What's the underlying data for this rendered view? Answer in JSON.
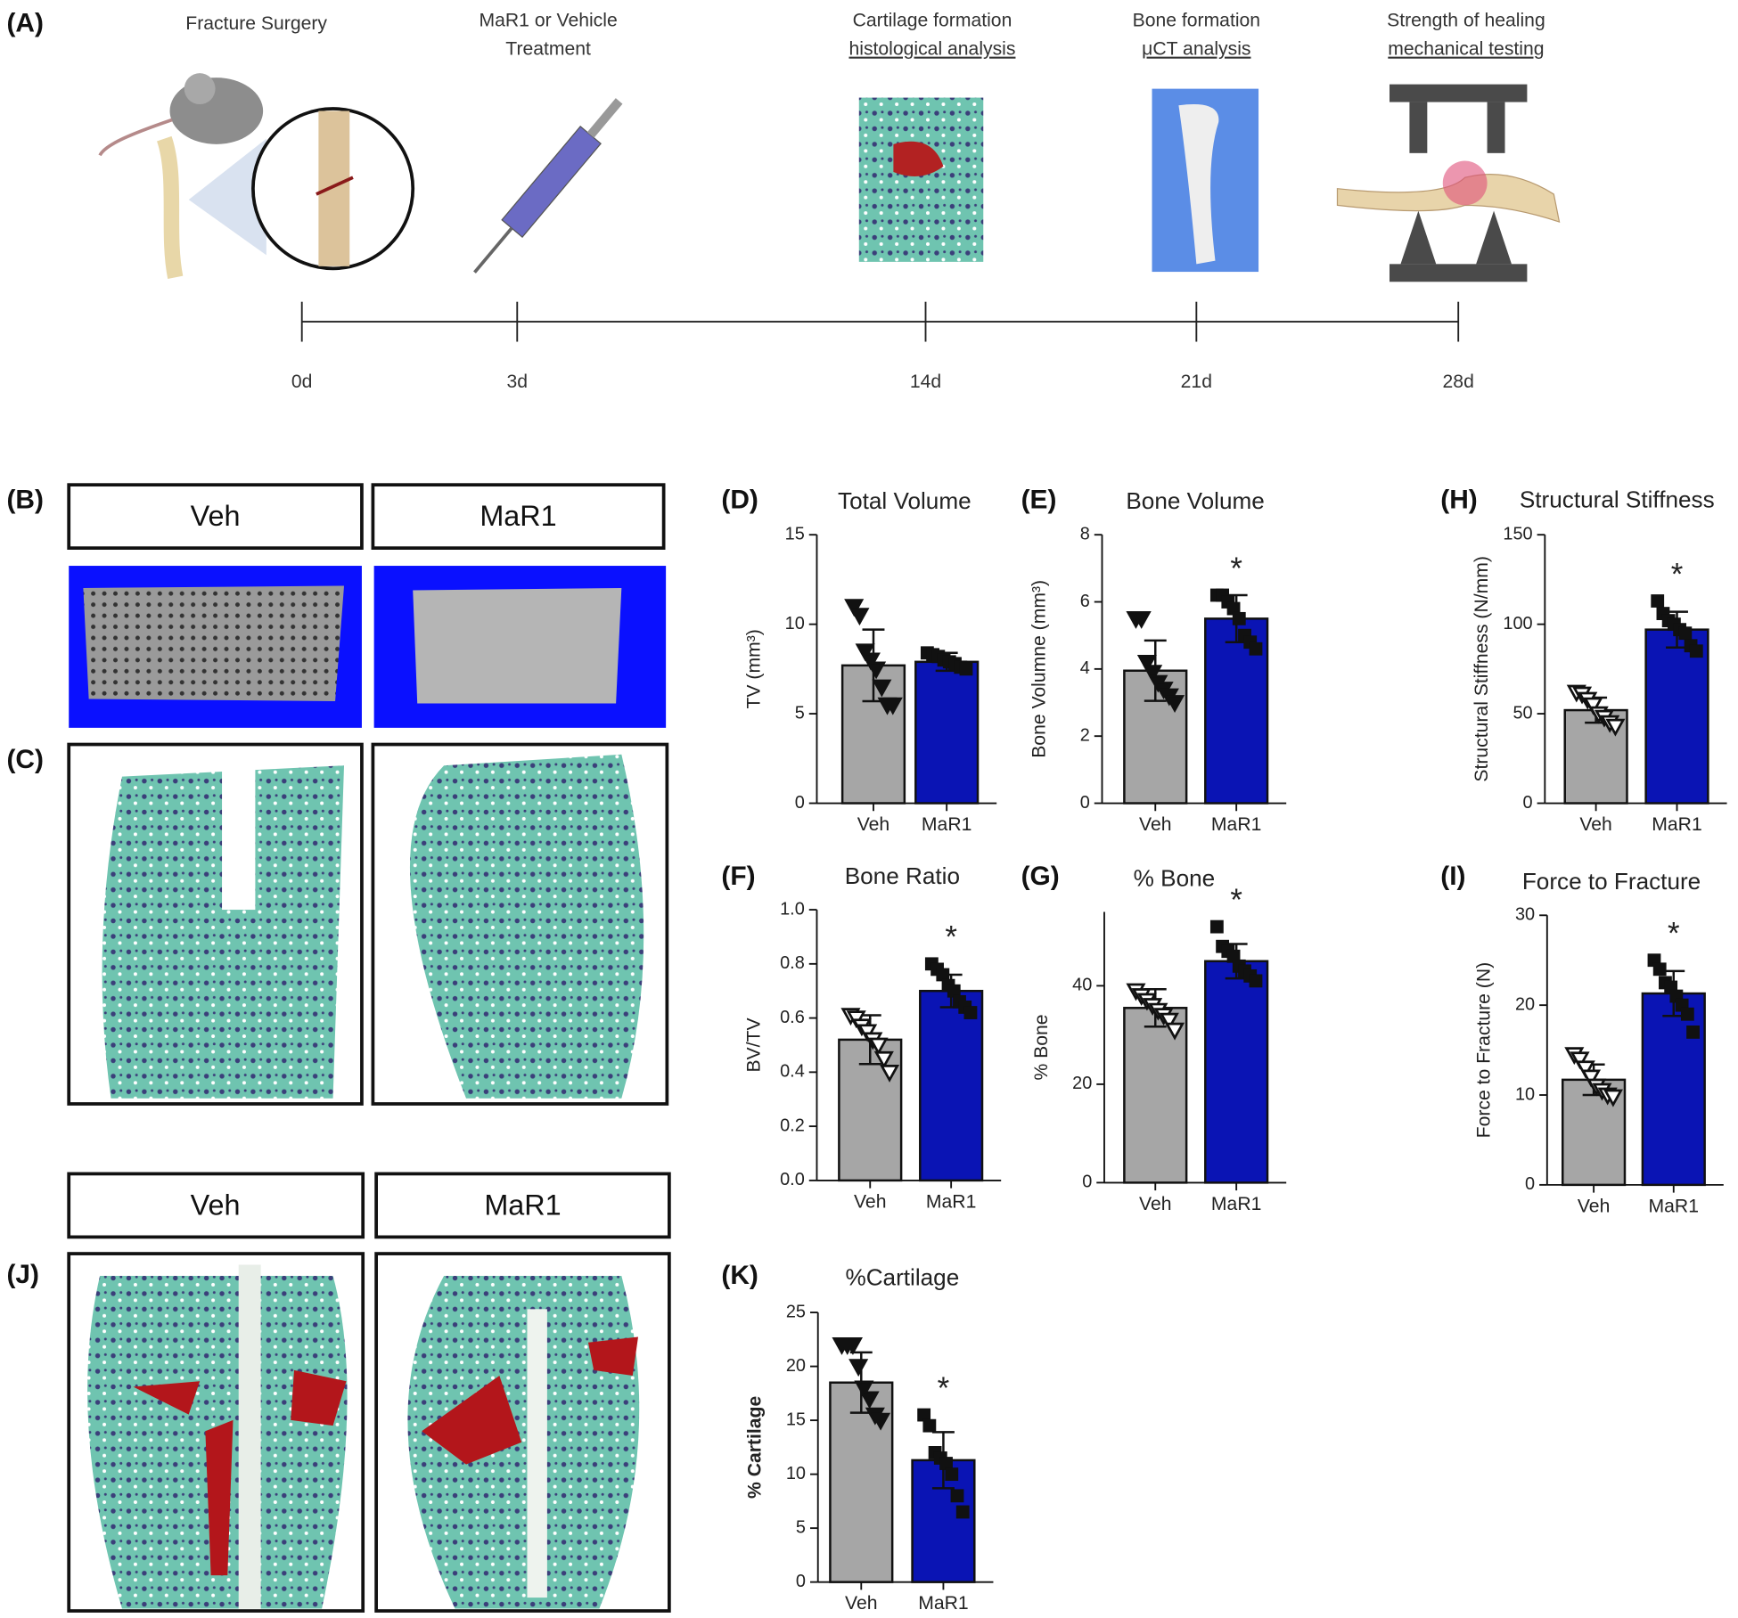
{
  "timeline": {
    "panel_label": "(A)",
    "events": [
      {
        "title": "Fracture Surgery"
      },
      {
        "title": "MaR1 or Vehicle",
        "method": "Treatment",
        "method_underlined": false
      },
      {
        "title": "Cartilage formation",
        "method": "histological analysis",
        "method_underlined": true
      },
      {
        "title": "Bone formation",
        "method": "μCT analysis",
        "method_underlined": true
      },
      {
        "title": "Strength of healing",
        "method": "mechanical testing",
        "method_underlined": true
      }
    ],
    "days": [
      "0d",
      "3d",
      "14d",
      "21d",
      "28d"
    ]
  },
  "micrographs": {
    "panel_labels": [
      "(B)",
      "(C)",
      "(J)"
    ],
    "groups_b": [
      "Veh",
      "MaR1"
    ],
    "groups_j": [
      "Veh",
      "MaR1"
    ]
  },
  "chart_data": [
    {
      "type": "bar",
      "panel_label": "(D)",
      "title": "Total Volume",
      "ylabel": "TV (mm³)",
      "categories": [
        "Veh",
        "MaR1"
      ],
      "values": [
        7.7,
        7.9
      ],
      "errors": [
        2.0,
        0.5
      ],
      "points": [
        [
          11,
          10.5,
          8.5,
          8,
          7.5,
          6.5,
          5.5,
          5.5
        ],
        [
          8.4,
          8.3,
          8.2,
          8.0,
          7.9,
          7.8,
          7.6,
          7.5
        ]
      ],
      "colors": [
        "#a6a6a6",
        "#0a14b4"
      ],
      "markers": [
        "triangle-down",
        "square"
      ],
      "ylim": [
        0,
        15
      ],
      "yticks": [
        0,
        5,
        10,
        15
      ]
    },
    {
      "type": "bar",
      "panel_label": "(E)",
      "title": "Bone Volume",
      "ylabel": "Bone Volumne (mm³)",
      "categories": [
        "Veh",
        "MaR1"
      ],
      "values": [
        3.95,
        5.5
      ],
      "errors": [
        0.9,
        0.7
      ],
      "points": [
        [
          5.5,
          5.5,
          4.2,
          3.9,
          3.6,
          3.4,
          3.2,
          3.0
        ],
        [
          6.2,
          6.2,
          6.0,
          5.8,
          5.5,
          5.0,
          4.8,
          4.6
        ]
      ],
      "colors": [
        "#a6a6a6",
        "#0a14b4"
      ],
      "markers": [
        "triangle-down",
        "square"
      ],
      "ylim": [
        0,
        8
      ],
      "yticks": [
        0,
        2,
        4,
        6,
        8
      ],
      "annotation": "*"
    },
    {
      "type": "bar",
      "panel_label": "(F)",
      "title": "Bone Ratio",
      "ylabel": "BV/TV",
      "categories": [
        "Veh",
        "MaR1"
      ],
      "values": [
        0.52,
        0.7
      ],
      "errors": [
        0.09,
        0.06
      ],
      "points": [
        [
          0.61,
          0.6,
          0.57,
          0.55,
          0.52,
          0.5,
          0.45,
          0.4
        ],
        [
          0.8,
          0.78,
          0.76,
          0.72,
          0.7,
          0.66,
          0.64,
          0.62
        ]
      ],
      "colors": [
        "#a6a6a6",
        "#0a14b4"
      ],
      "markers": [
        "triangle-down-open",
        "square"
      ],
      "ylim": [
        0,
        1
      ],
      "yticks": [
        {
          "value": 0,
          "label": "0.0"
        },
        0.2,
        0.4,
        0.6,
        0.8,
        {
          "value": 1,
          "label": "1.0"
        }
      ],
      "annotation": "*"
    },
    {
      "type": "bar",
      "panel_label": "(G)",
      "title": "% Bone",
      "ylabel": "% Bone",
      "categories": [
        "Veh",
        "MaR1"
      ],
      "values": [
        35.5,
        45
      ],
      "errors": [
        3.8,
        3.5
      ],
      "points": [
        [
          39,
          38,
          37,
          36,
          35,
          34,
          33,
          31
        ],
        [
          52,
          48,
          47,
          46,
          44,
          43,
          42,
          41
        ]
      ],
      "colors": [
        "#a6a6a6",
        "#0a14b4"
      ],
      "markers": [
        "triangle-down-open",
        "square"
      ],
      "ylim": [
        0,
        55
      ],
      "yticks": [
        0,
        20,
        40
      ],
      "annotation": "*"
    },
    {
      "type": "bar",
      "panel_label": "(H)",
      "title": "Structural Stiffness",
      "ylabel": "Structural Stiffness (N/mm)",
      "categories": [
        "Veh",
        "MaR1"
      ],
      "values": [
        52,
        97
      ],
      "errors": [
        7,
        10
      ],
      "points": [
        [
          62,
          61,
          58,
          55,
          50,
          48,
          45,
          43
        ],
        [
          113,
          106,
          102,
          100,
          97,
          95,
          88,
          85
        ]
      ],
      "colors": [
        "#a6a6a6",
        "#0a14b4"
      ],
      "markers": [
        "triangle-down-open",
        "square"
      ],
      "ylim": [
        0,
        150
      ],
      "yticks": [
        0,
        50,
        100,
        150
      ],
      "annotation": "*"
    },
    {
      "type": "bar",
      "panel_label": "(I)",
      "title": "Force to Fracture",
      "ylabel": "Force to Fracture (N)",
      "categories": [
        "Veh",
        "MaR1"
      ],
      "values": [
        11.7,
        21.3
      ],
      "errors": [
        1.7,
        2.5
      ],
      "points": [
        [
          14.5,
          14,
          13,
          12,
          11,
          10.5,
          10,
          9.8
        ],
        [
          25,
          24,
          22.5,
          22,
          21,
          20,
          19,
          17
        ]
      ],
      "colors": [
        "#a6a6a6",
        "#0a14b4"
      ],
      "markers": [
        "triangle-down-open",
        "square"
      ],
      "ylim": [
        0,
        30
      ],
      "yticks": [
        0,
        10,
        20,
        30
      ],
      "annotation": "*"
    },
    {
      "type": "bar",
      "panel_label": "(K)",
      "title": "%Cartilage",
      "ylabel": "% Cartilage",
      "ylabel_bold": true,
      "categories": [
        "Veh",
        "MaR1"
      ],
      "values": [
        18.5,
        11.3
      ],
      "errors": [
        2.8,
        2.6
      ],
      "points": [
        [
          22,
          22,
          22,
          20,
          18,
          17,
          15.5,
          15
        ],
        [
          15.5,
          14.5,
          12,
          11.5,
          11,
          10,
          8,
          6.5
        ]
      ],
      "colors": [
        "#a6a6a6",
        "#0a14b4"
      ],
      "markers": [
        "triangle-down",
        "square"
      ],
      "ylim": [
        0,
        25
      ],
      "yticks": [
        0,
        5,
        10,
        15,
        20,
        25
      ],
      "annotation": "*"
    }
  ]
}
